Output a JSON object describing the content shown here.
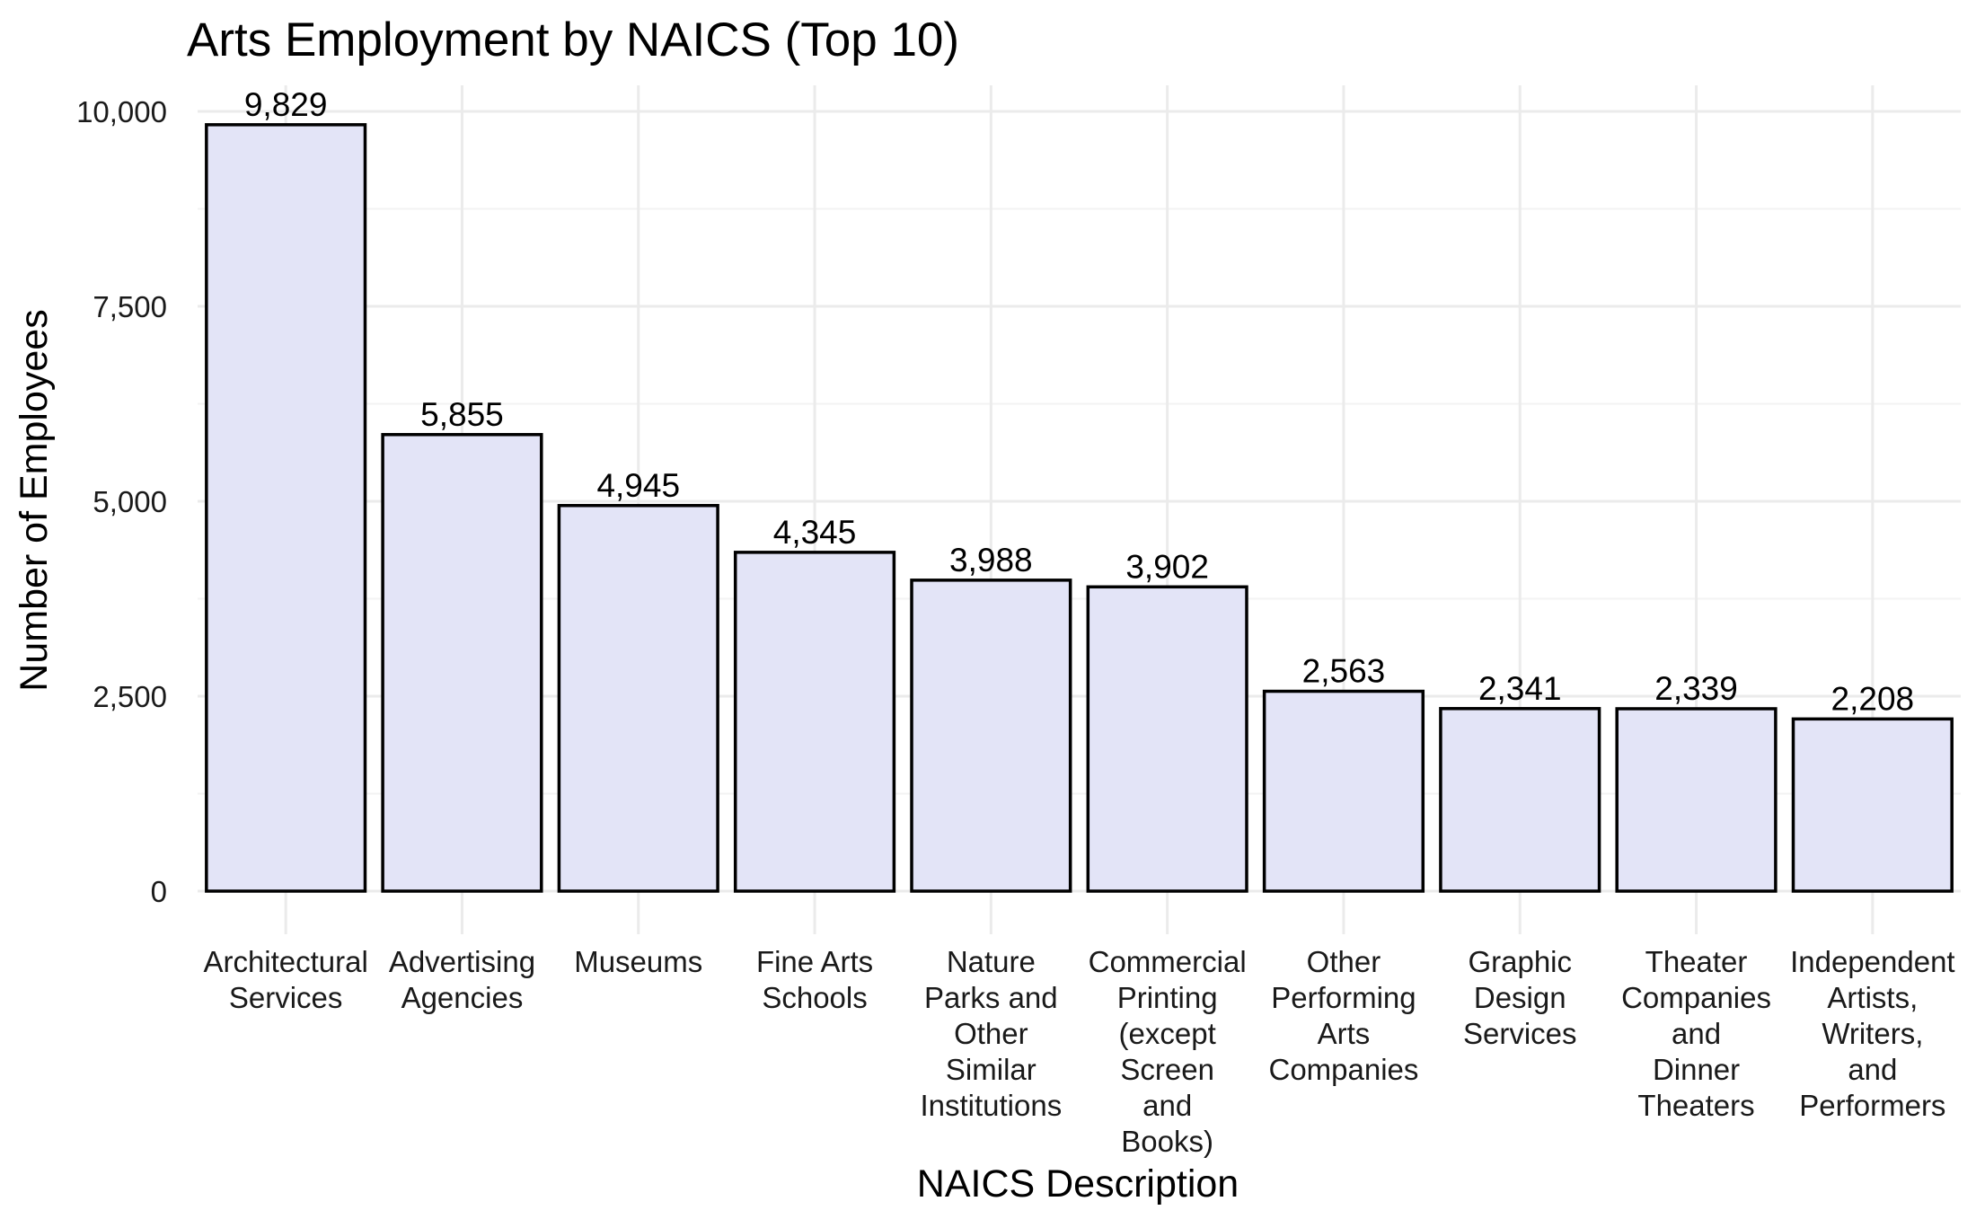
{
  "chart_data": {
    "type": "bar",
    "title": "Arts Employment by NAICS (Top 10)",
    "xlabel": "NAICS Description",
    "ylabel": "Number of Employees",
    "ylim": [
      0,
      10000
    ],
    "yticks": [
      0,
      2500,
      5000,
      7500,
      10000
    ],
    "ytick_labels": [
      "0",
      "2,500",
      "5,000",
      "7,500",
      "10,000"
    ],
    "grid": true,
    "legend": "none",
    "bar_color": "#e3e4f7",
    "bar_edge_color": "#000000",
    "categories": [
      "Architectural Services",
      "Advertising Agencies",
      "Museums",
      "Fine Arts Schools",
      "Nature Parks and Other Similar Institutions",
      "Commercial Printing (except Screen and Books)",
      "Other Performing Arts Companies",
      "Graphic Design Services",
      "Theater Companies and Dinner Theaters",
      "Independent Artists, Writers, and Performers"
    ],
    "category_label_lines": [
      [
        "Architectural",
        "Services"
      ],
      [
        "Advertising",
        "Agencies"
      ],
      [
        "Museums"
      ],
      [
        "Fine Arts",
        "Schools"
      ],
      [
        "Nature",
        "Parks and",
        "Other",
        "Similar",
        "Institutions"
      ],
      [
        "Commercial",
        "Printing",
        "(except",
        "Screen",
        "and",
        "Books)"
      ],
      [
        "Other",
        "Performing",
        "Arts",
        "Companies"
      ],
      [
        "Graphic",
        "Design",
        "Services"
      ],
      [
        "Theater",
        "Companies",
        "and",
        "Dinner",
        "Theaters"
      ],
      [
        "Independent",
        "Artists,",
        "Writers,",
        "and",
        "Performers"
      ]
    ],
    "values": [
      9829,
      5855,
      4945,
      4345,
      3988,
      3902,
      2563,
      2341,
      2339,
      2208
    ],
    "value_labels": [
      "9,829",
      "5,855",
      "4,945",
      "4,345",
      "3,988",
      "3,902",
      "2,563",
      "2,341",
      "2,339",
      "2,208"
    ]
  }
}
